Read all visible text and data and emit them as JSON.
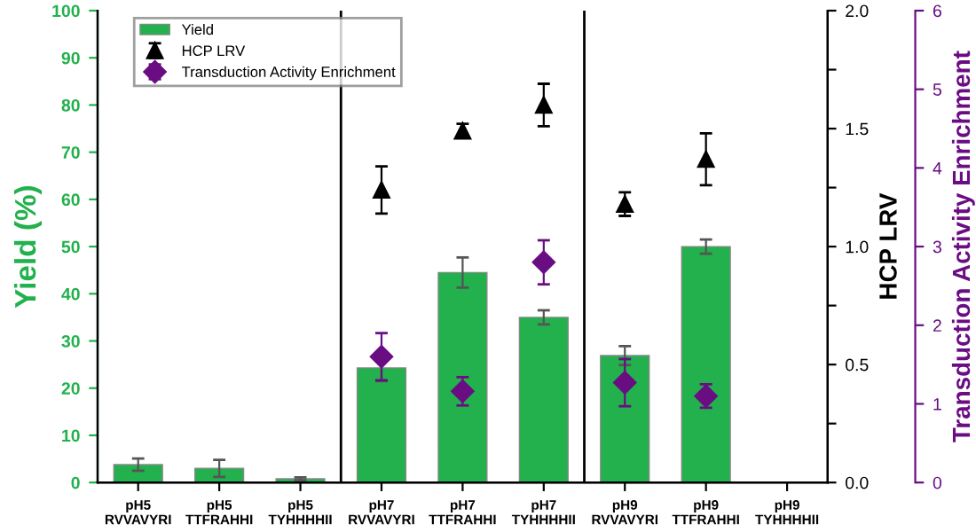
{
  "chart_data": {
    "type": "bar",
    "ylabel": "Yield (%)",
    "y2label": "HCP LRV",
    "y3label": "Transduction Activity Enrichment",
    "categories": [
      "pH5\nRVVAVYRI",
      "pH5\nTTFRAHHI",
      "pH5\nTYHHHHII",
      "pH7\nRVVAVYRI",
      "pH7\nTTFRAHHI",
      "pH7\nTYHHHHII",
      "pH9\nRVVAVYRI",
      "pH9\nTTFRAHHI",
      "pH9\nTYHHHHII"
    ],
    "series": [
      {
        "name": "Yield",
        "color": "#22b14c",
        "values": [
          3.8,
          3.0,
          0.8,
          24.3,
          44.5,
          35.0,
          26.9,
          50.0,
          null
        ],
        "errors": [
          1.3,
          1.8,
          0.3,
          2.8,
          3.2,
          1.5,
          2.0,
          1.5,
          null
        ]
      },
      {
        "name": "HCP LRV",
        "type": "scatter",
        "axis": "y2",
        "marker": "triangle",
        "color": "#000000",
        "values": [
          null,
          null,
          null,
          1.24,
          1.49,
          1.6,
          1.18,
          1.37,
          null
        ],
        "errors": [
          null,
          null,
          null,
          0.1,
          0.03,
          0.09,
          0.05,
          0.11,
          null
        ]
      },
      {
        "name": "Transduction Activity Enrichment",
        "type": "scatter",
        "axis": "y3",
        "marker": "diamond",
        "color": "#6a0d83",
        "values": [
          null,
          null,
          null,
          1.6,
          1.16,
          2.8,
          1.27,
          1.1,
          null
        ],
        "errors": [
          null,
          null,
          null,
          0.3,
          0.18,
          0.28,
          0.3,
          0.15,
          null
        ]
      }
    ],
    "ylim": [
      0,
      100
    ],
    "yticks": [
      0,
      10,
      20,
      30,
      40,
      50,
      60,
      70,
      80,
      90,
      100
    ],
    "y2lim": [
      0,
      2.0
    ],
    "y2ticks": [
      {
        "value": 0,
        "label": "0.0"
      },
      {
        "value": 0.25,
        "label": null
      },
      {
        "value": 0.5,
        "label": "0.5"
      },
      {
        "value": 0.75,
        "label": null
      },
      {
        "value": 1.0,
        "label": "1.0"
      },
      {
        "value": 1.25,
        "label": null
      },
      {
        "value": 1.5,
        "label": "1.5"
      },
      {
        "value": 1.75,
        "label": null
      },
      {
        "value": 2.0,
        "label": "2.0"
      }
    ],
    "y3lim": [
      0,
      6
    ],
    "y3ticks": [
      0,
      1,
      2,
      3,
      4,
      5,
      6
    ],
    "legend": "top left",
    "grid": false
  }
}
